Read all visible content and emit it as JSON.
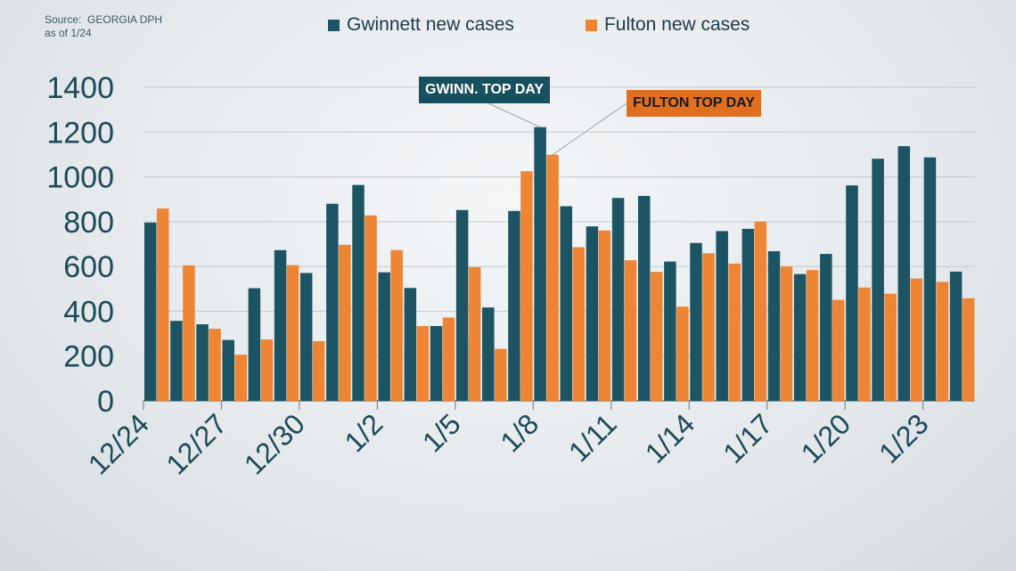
{
  "source": {
    "line1": "Source:  GEORGIA DPH",
    "line2": "as of 1/24"
  },
  "callouts": {
    "gwinnett": "GWINN. TOP DAY",
    "fulton": "FULTON TOP DAY"
  },
  "colors": {
    "gwinnett": "#1c5463",
    "fulton": "#ee8535",
    "axis_text": "#1c4a58",
    "grid": "#c3c9ce"
  },
  "chart_data": {
    "type": "bar",
    "categories": [
      "12/24",
      "12/25",
      "12/26",
      "12/27",
      "12/28",
      "12/29",
      "12/30",
      "12/31",
      "1/1",
      "1/2",
      "1/3",
      "1/4",
      "1/5",
      "1/6",
      "1/7",
      "1/8",
      "1/9",
      "1/10",
      "1/11",
      "1/12",
      "1/13",
      "1/14",
      "1/15",
      "1/16",
      "1/17",
      "1/18",
      "1/19",
      "1/20",
      "1/21",
      "1/22",
      "1/23",
      "1/24"
    ],
    "tick_labels": [
      "12/24",
      "12/27",
      "12/30",
      "1/2",
      "1/5",
      "1/8",
      "1/11",
      "1/14",
      "1/17",
      "1/20",
      "1/23"
    ],
    "series": [
      {
        "name": "Gwinnett new cases",
        "color": "#1c5463",
        "values": [
          796,
          357,
          342,
          272,
          503,
          673,
          571,
          880,
          964,
          574,
          504,
          334,
          852,
          417,
          848,
          1222,
          869,
          779,
          906,
          915,
          622,
          705,
          758,
          768,
          668,
          566,
          656,
          962,
          1081,
          1137,
          1087,
          577
        ]
      },
      {
        "name": "Fulton new cases",
        "color": "#ee8535",
        "values": [
          859,
          605,
          322,
          206,
          274,
          606,
          267,
          697,
          828,
          673,
          334,
          372,
          597,
          232,
          1025,
          1099,
          686,
          761,
          628,
          576,
          421,
          659,
          613,
          800,
          600,
          584,
          451,
          506,
          478,
          546,
          531,
          458
        ]
      }
    ],
    "ylim": [
      0,
      1400
    ],
    "yticks": [
      0,
      200,
      400,
      600,
      800,
      1000,
      1200,
      1400
    ],
    "grid": true,
    "legend_position": "top-center"
  }
}
